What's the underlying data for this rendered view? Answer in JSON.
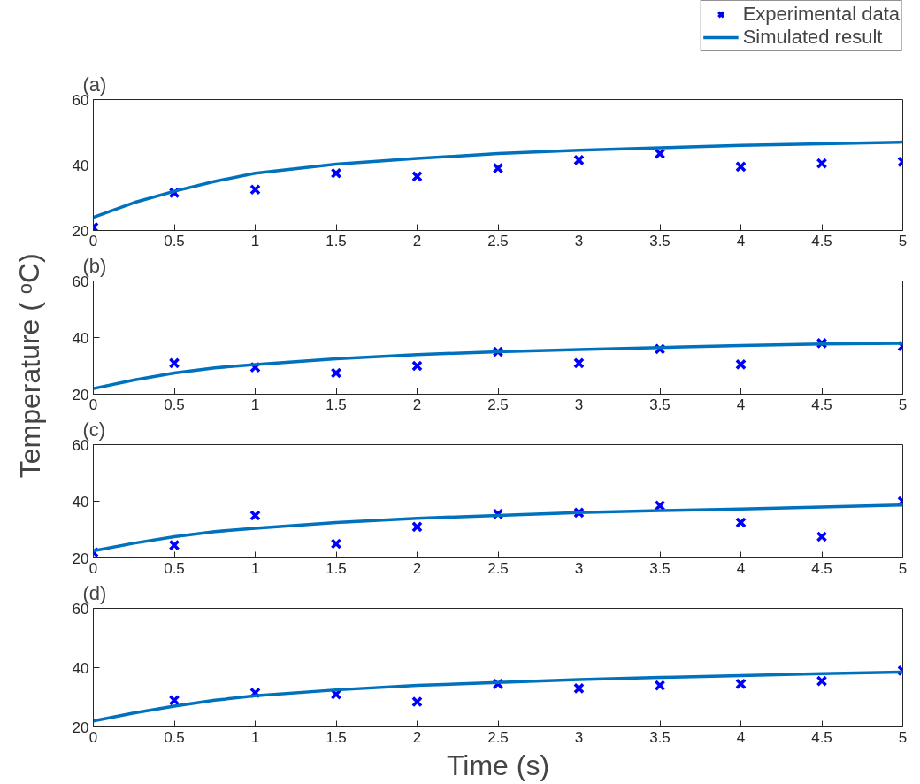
{
  "chart_data": [
    {
      "type": "line",
      "title": "(a)",
      "xlim": [
        0,
        5
      ],
      "ylim": [
        20,
        60
      ],
      "xticks": [
        0,
        0.5,
        1,
        1.5,
        2,
        2.5,
        3,
        3.5,
        4,
        4.5,
        5
      ],
      "yticks": [
        20,
        40,
        60
      ],
      "grid": false,
      "legend": "top right",
      "series": [
        {
          "name": "Experimental data",
          "type": "scatter",
          "marker": "cross",
          "color": "#0000ff",
          "x": [
            0,
            0.5,
            1,
            1.5,
            2,
            2.5,
            3,
            3.5,
            4,
            4.5,
            5
          ],
          "values": [
            21,
            31.5,
            32.5,
            37.5,
            36.5,
            39,
            41.5,
            43.5,
            39.5,
            40.5,
            41
          ]
        },
        {
          "name": "Simulated result",
          "marker": "none",
          "line_style": "solid",
          "color": "#0072bd",
          "x": [
            0,
            0.25,
            0.5,
            0.75,
            1,
            1.5,
            2,
            2.5,
            3,
            3.5,
            4,
            4.5,
            5
          ],
          "values": [
            24,
            28.5,
            32,
            35,
            37.5,
            40.3,
            42,
            43.5,
            44.5,
            45.3,
            46,
            46.5,
            47
          ]
        }
      ]
    },
    {
      "type": "line",
      "title": "(b)",
      "ylabel": "Temperature ( ᵒC)",
      "xlim": [
        0,
        5
      ],
      "ylim": [
        20,
        60
      ],
      "xticks": [
        0,
        0.5,
        1,
        1.5,
        2,
        2.5,
        3,
        3.5,
        4,
        4.5,
        5
      ],
      "yticks": [
        20,
        40,
        60
      ],
      "grid": false,
      "series": [
        {
          "type": "scatter",
          "marker": "cross",
          "color": "#0000ff",
          "x": [
            0.5,
            1,
            1.5,
            2,
            2.5,
            3,
            3.5,
            4,
            4.5,
            5
          ],
          "values": [
            31,
            29.5,
            27.5,
            30,
            35,
            31,
            36,
            30.5,
            38,
            37
          ]
        },
        {
          "marker": "none",
          "line_style": "solid",
          "color": "#0072bd",
          "x": [
            0,
            0.25,
            0.5,
            0.75,
            1,
            1.5,
            2,
            2.5,
            3,
            3.5,
            4,
            4.5,
            5
          ],
          "values": [
            22,
            25,
            27.5,
            29.3,
            30.5,
            32.5,
            34,
            35,
            35.8,
            36.5,
            37.2,
            37.7,
            38
          ]
        }
      ]
    },
    {
      "type": "line",
      "title": "(c)",
      "xlim": [
        0,
        5
      ],
      "ylim": [
        20,
        60
      ],
      "xticks": [
        0,
        0.5,
        1,
        1.5,
        2,
        2.5,
        3,
        3.5,
        4,
        4.5,
        5
      ],
      "yticks": [
        20,
        40,
        60
      ],
      "grid": false,
      "series": [
        {
          "type": "scatter",
          "marker": "cross",
          "color": "#0000ff",
          "x": [
            0,
            0.5,
            1,
            1.5,
            2,
            2.5,
            3,
            3.5,
            4,
            4.5,
            5
          ],
          "values": [
            22,
            24.5,
            35,
            25,
            31,
            35.5,
            36,
            38.5,
            32.5,
            27.5,
            40
          ]
        },
        {
          "marker": "none",
          "line_style": "solid",
          "color": "#0072bd",
          "x": [
            0,
            0.25,
            0.5,
            0.75,
            1,
            1.5,
            2,
            2.5,
            3,
            3.5,
            4,
            4.5,
            5
          ],
          "values": [
            22.5,
            25.2,
            27.5,
            29.3,
            30.5,
            32.5,
            34,
            35,
            36,
            36.7,
            37.3,
            38,
            38.7
          ]
        }
      ]
    },
    {
      "type": "line",
      "title": "(d)",
      "xlabel": "Time (s)",
      "xlim": [
        0,
        5
      ],
      "ylim": [
        20,
        60
      ],
      "xticks": [
        0,
        0.5,
        1,
        1.5,
        2,
        2.5,
        3,
        3.5,
        4,
        4.5,
        5
      ],
      "yticks": [
        20,
        40,
        60
      ],
      "grid": false,
      "series": [
        {
          "type": "scatter",
          "marker": "cross",
          "color": "#0000ff",
          "x": [
            0.5,
            1,
            1.5,
            2,
            2.5,
            3,
            3.5,
            4,
            4.5,
            5
          ],
          "values": [
            29,
            31.5,
            31,
            28.5,
            34.5,
            33,
            34,
            34.5,
            35.5,
            39
          ]
        },
        {
          "marker": "none",
          "line_style": "solid",
          "color": "#0072bd",
          "x": [
            0,
            0.25,
            0.5,
            0.75,
            1,
            1.5,
            2,
            2.5,
            3,
            3.5,
            4,
            4.5,
            5
          ],
          "values": [
            22,
            24.7,
            27,
            29,
            30.5,
            32.5,
            34,
            35,
            36,
            36.7,
            37.3,
            38,
            38.5
          ]
        }
      ]
    }
  ]
}
